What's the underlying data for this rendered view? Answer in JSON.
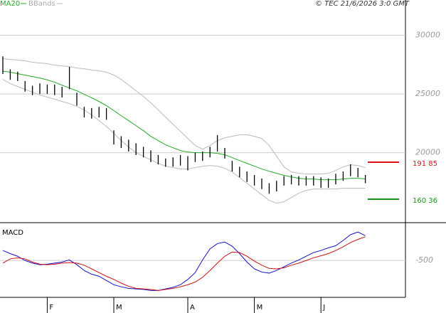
{
  "chart_data": [
    {
      "type": "ohlc",
      "source": "© TEC 21/6/2026 3:0 GMT",
      "high": [
        28200,
        27100,
        26900,
        26100,
        25700,
        25900,
        25800,
        25800,
        25600,
        27300,
        25100,
        23900,
        23800,
        23900,
        23800,
        21900,
        21400,
        21100,
        20800,
        20500,
        20200,
        19800,
        19500,
        19600,
        19800,
        19700,
        20000,
        20100,
        20500,
        21500,
        20400,
        19300,
        18800,
        18400,
        18100,
        17800,
        17400,
        17600,
        18000,
        18100,
        18000,
        18000,
        18000,
        17900,
        17800,
        18200,
        18400,
        19000,
        18700,
        18100
      ],
      "low": [
        26700,
        26200,
        26100,
        25200,
        24900,
        25000,
        25000,
        24900,
        24700,
        25400,
        24000,
        23000,
        22900,
        23000,
        22800,
        20700,
        20400,
        20100,
        19800,
        19600,
        19200,
        19000,
        18800,
        18800,
        18900,
        18500,
        19200,
        19300,
        19600,
        20100,
        19500,
        18400,
        17900,
        17500,
        17200,
        16900,
        16500,
        16700,
        17200,
        17300,
        17200,
        17200,
        17200,
        17000,
        17000,
        17300,
        17600,
        18000,
        17900,
        17400
      ],
      "bar_color": "#000000",
      "series": [
        {
          "name": "MA20",
          "color": "#22aa22",
          "values": [
            26950,
            26850,
            26730,
            26600,
            26480,
            26350,
            26200,
            26000,
            25750,
            25500,
            25270,
            24970,
            24670,
            24360,
            24000,
            23580,
            23150,
            22730,
            22300,
            21880,
            21390,
            21030,
            20670,
            20420,
            20180,
            20060,
            20000,
            20000,
            20000,
            19940,
            19820,
            19580,
            19330,
            19090,
            18850,
            18610,
            18420,
            18240,
            18060,
            17940,
            17820,
            17760,
            17760,
            17700,
            17700,
            17700,
            17760,
            17820,
            17820,
            17760
          ]
        },
        {
          "name": "BBands",
          "color": "#bbbbbb",
          "values": [
            28000,
            27940,
            27880,
            27820,
            27700,
            27640,
            27580,
            27450,
            27390,
            27330,
            27210,
            27150,
            27030,
            26970,
            26850,
            26610,
            26240,
            25760,
            25270,
            24790,
            24240,
            23640,
            23030,
            22420,
            21820,
            21210,
            20610,
            20300,
            20610,
            21030,
            21270,
            21390,
            21520,
            21520,
            21390,
            21210,
            20610,
            19700,
            18790,
            18360,
            18240,
            18180,
            18180,
            18180,
            18240,
            18480,
            18790,
            18970,
            18910,
            18730
          ],
          "lower": [
            26240,
            25880,
            25640,
            25390,
            25150,
            24910,
            24730,
            24550,
            24360,
            24180,
            23940,
            23640,
            23210,
            22730,
            22240,
            21640,
            21030,
            20480,
            20000,
            19700,
            19390,
            19090,
            18850,
            18730,
            18610,
            18610,
            18730,
            18850,
            18910,
            18850,
            18670,
            18360,
            17880,
            17390,
            16910,
            16420,
            15940,
            15700,
            15820,
            16180,
            16550,
            16790,
            16910,
            16910,
            16910,
            16910,
            16970,
            16970,
            16970,
            16970
          ]
        }
      ],
      "levels": [
        {
          "value": 19185,
          "label": "191 85",
          "color": "#dd1111"
        },
        {
          "value": 16036,
          "label": "160 36",
          "color": "#119911"
        }
      ],
      "ylim": [
        14100,
        33000
      ],
      "yticks": [
        20000,
        25000,
        30000
      ],
      "grid": true
    },
    {
      "type": "line",
      "title": "MACD",
      "categories": [
        null,
        null,
        null,
        null,
        null,
        null,
        "F",
        null,
        null,
        null,
        null,
        null,
        null,
        null,
        null,
        "M",
        null,
        null,
        null,
        null,
        null,
        null,
        null,
        null,
        null,
        "A",
        null,
        null,
        null,
        null,
        null,
        null,
        null,
        null,
        "M",
        null,
        null,
        null,
        null,
        null,
        null,
        null,
        null,
        "J",
        null,
        null,
        null,
        null,
        null,
        null
      ],
      "series": [
        {
          "color": "#1111cc",
          "values": [
            -310,
            -370,
            -420,
            -500,
            -550,
            -580,
            -570,
            -550,
            -530,
            -490,
            -580,
            -690,
            -760,
            -800,
            -880,
            -960,
            -1000,
            -1030,
            -1040,
            -1050,
            -1070,
            -1070,
            -1040,
            -1010,
            -960,
            -860,
            -730,
            -490,
            -280,
            -180,
            -150,
            -230,
            -370,
            -530,
            -660,
            -720,
            -740,
            -690,
            -620,
            -550,
            -490,
            -420,
            -350,
            -310,
            -260,
            -220,
            -120,
            -10,
            40,
            -30
          ]
        },
        {
          "color": "#cc1111",
          "values": [
            -550,
            -470,
            -450,
            -470,
            -530,
            -570,
            -580,
            -570,
            -550,
            -540,
            -550,
            -590,
            -660,
            -730,
            -800,
            -860,
            -930,
            -990,
            -1030,
            -1040,
            -1050,
            -1070,
            -1050,
            -1030,
            -1000,
            -960,
            -910,
            -820,
            -690,
            -550,
            -420,
            -340,
            -350,
            -420,
            -510,
            -590,
            -650,
            -660,
            -640,
            -590,
            -550,
            -500,
            -450,
            -410,
            -370,
            -310,
            -240,
            -160,
            -100,
            -50
          ]
        }
      ],
      "ylim": [
        -1200,
        150
      ],
      "yticks": [
        -500
      ],
      "grid": true
    }
  ]
}
